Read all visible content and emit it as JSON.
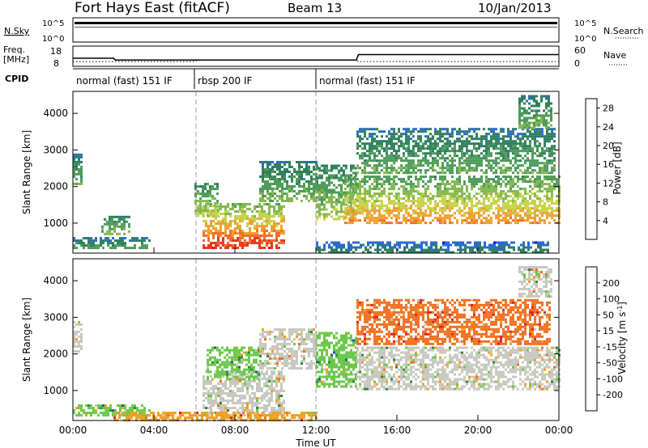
{
  "header": {
    "station": "Fort Hays East (fitACF)",
    "beam": "Beam 13",
    "date": "10/Jan/2013"
  },
  "summary_panel": {
    "nsky_label": "N.Sky",
    "nsky_ticks": [
      "10^5",
      "10^0"
    ],
    "nsearch_label": "N.Search",
    "nsearch_ticks": [
      "10^5",
      "10^0"
    ],
    "freq_label_1": "Freq.",
    "freq_label_2": "[MHz]",
    "freq_ticks": [
      "18",
      "8"
    ],
    "nave_label": "Nave",
    "nave_ticks": [
      "60",
      "0"
    ],
    "cpid_label": "CPID",
    "cpid_segments": [
      {
        "label": "normal (fast) 151 IF",
        "start_hour": 0,
        "end_hour": 6
      },
      {
        "label": "rbsp 200 IF",
        "start_hour": 6,
        "end_hour": 12
      },
      {
        "label": "normal (fast) 151 IF",
        "start_hour": 12,
        "end_hour": 24
      }
    ],
    "freq_series_mhz": [
      [
        0,
        12
      ],
      [
        2,
        12
      ],
      [
        2.1,
        11.1
      ],
      [
        14,
        11.1
      ],
      [
        14.1,
        13.8
      ],
      [
        24,
        13.8
      ]
    ],
    "nave_series": [
      [
        0,
        14
      ],
      [
        6,
        14
      ],
      [
        6.2,
        19
      ],
      [
        14,
        19
      ],
      [
        14.1,
        14
      ],
      [
        24,
        14
      ]
    ]
  },
  "chart_data": [
    {
      "type": "heatmap",
      "name": "power",
      "ylabel": "Slant Range [km]",
      "yticks": [
        "1000",
        "2000",
        "3000",
        "4000"
      ],
      "ylim": [
        180,
        4600
      ],
      "xlim": [
        0,
        24
      ],
      "colorbar_label": "Power [dB]",
      "colorbar_ticks": [
        "4",
        "8",
        "12",
        "16",
        "20",
        "24",
        "28"
      ],
      "colorbar_colors": [
        "#1010dc",
        "#2a6ad8",
        "#2f7f5e",
        "#4e9b5a",
        "#84b850",
        "#c8d24a",
        "#f0a030",
        "#f07028",
        "#e83a20",
        "#dc1010"
      ],
      "colorbar_range": [
        0,
        30
      ],
      "regions": [
        {
          "t0": 0.0,
          "t1": 3.8,
          "r0": 340,
          "r1": 620,
          "lvl": 9
        },
        {
          "t0": 1.4,
          "t1": 2.8,
          "r0": 700,
          "r1": 1200,
          "lvl": 12
        },
        {
          "t0": 0.0,
          "t1": 0.4,
          "r0": 2100,
          "r1": 2900,
          "lvl": 10
        },
        {
          "t0": 6.4,
          "t1": 10.4,
          "r0": 350,
          "r1": 1550,
          "lvl": 22
        },
        {
          "t0": 6.0,
          "t1": 7.2,
          "r0": 1200,
          "r1": 2100,
          "lvl": 14
        },
        {
          "t0": 9.2,
          "t1": 12.0,
          "r0": 1600,
          "r1": 2700,
          "lvl": 11
        },
        {
          "t0": 12.0,
          "t1": 14.0,
          "r0": 1100,
          "r1": 2600,
          "lvl": 13
        },
        {
          "t0": 13.4,
          "t1": 24.0,
          "r0": 1000,
          "r1": 2300,
          "lvl": 18
        },
        {
          "t0": 14.0,
          "t1": 23.8,
          "r0": 2400,
          "r1": 3600,
          "lvl": 10
        },
        {
          "t0": 22.0,
          "t1": 23.6,
          "r0": 3600,
          "r1": 4500,
          "lvl": 11
        },
        {
          "t0": 12.0,
          "t1": 23.5,
          "r0": 180,
          "r1": 500,
          "lvl": 7
        }
      ]
    },
    {
      "type": "heatmap",
      "name": "velocity",
      "ylabel": "Slant Range [km]",
      "yticks": [
        "1000",
        "2000",
        "3000",
        "4000"
      ],
      "ylim": [
        180,
        4600
      ],
      "xlim": [
        0,
        24
      ],
      "xlabel": "Time UT",
      "xticks": [
        "00:00",
        "04:00",
        "08:00",
        "12:00",
        "16:00",
        "20:00",
        "00:00"
      ],
      "colorbar_label": "Velocity [m s^-1]",
      "colorbar_ticks": [
        "200",
        "100",
        "50",
        "15",
        "-15",
        "-50",
        "-100",
        "-200"
      ],
      "colorbar_colors": [
        "#2a2ab0",
        "#1f5aa0",
        "#2f8a3a",
        "#6cc84a",
        "#c8c8c0",
        "#f0a020",
        "#f07020",
        "#e02020"
      ],
      "regions": [
        {
          "t0": 0.0,
          "t1": 3.8,
          "r0": 340,
          "r1": 620,
          "lvl": 3
        },
        {
          "t0": 0.0,
          "t1": 0.4,
          "r0": 2100,
          "r1": 2900,
          "lvl": 4
        },
        {
          "t0": 6.4,
          "t1": 10.4,
          "r0": 350,
          "r1": 1550,
          "lvl": 4
        },
        {
          "t0": 6.6,
          "t1": 9.2,
          "r0": 1300,
          "r1": 2200,
          "lvl": 3
        },
        {
          "t0": 9.2,
          "t1": 12.0,
          "r0": 1600,
          "r1": 2700,
          "lvl": 4
        },
        {
          "t0": 12.0,
          "t1": 14.0,
          "r0": 1100,
          "r1": 2600,
          "lvl": 3
        },
        {
          "t0": 14.0,
          "t1": 24.0,
          "r0": 1050,
          "r1": 2200,
          "lvl": 4
        },
        {
          "t0": 2.0,
          "t1": 12.0,
          "r0": 180,
          "r1": 420,
          "lvl": 5
        },
        {
          "t0": 14.0,
          "t1": 23.6,
          "r0": 2300,
          "r1": 3500,
          "lvl": 6
        },
        {
          "t0": 22.0,
          "t1": 23.6,
          "r0": 3600,
          "r1": 4400,
          "lvl": 4
        }
      ]
    }
  ]
}
